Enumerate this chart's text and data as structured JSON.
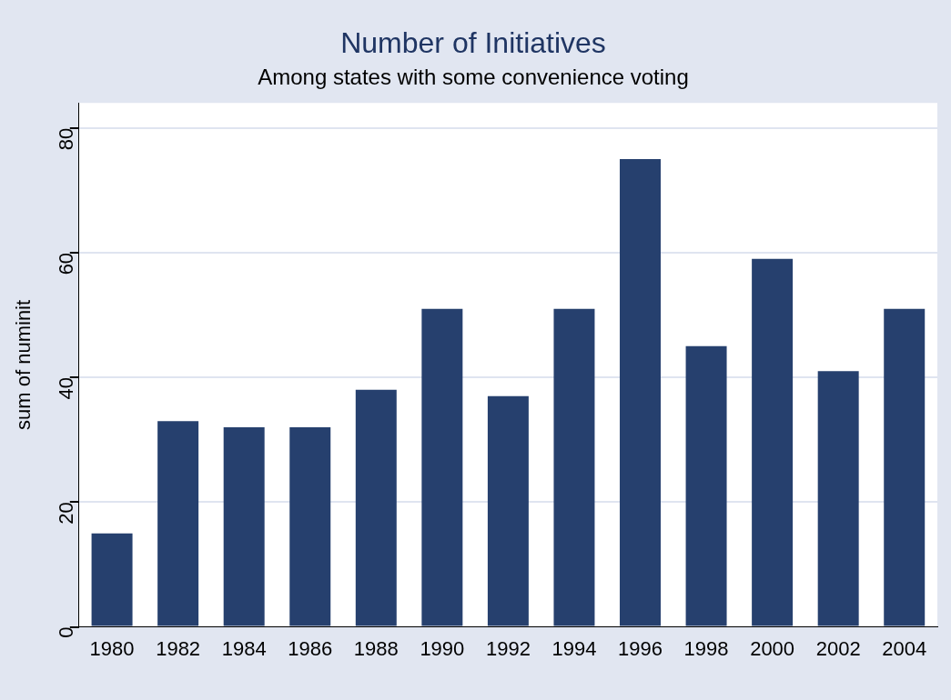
{
  "chart_data": {
    "type": "bar",
    "title": "Number of Initiatives",
    "subtitle": "Among states with some convenience voting",
    "ylabel": "sum of numinit",
    "categories": [
      "1980",
      "1982",
      "1984",
      "1986",
      "1988",
      "1990",
      "1992",
      "1994",
      "1996",
      "1998",
      "2000",
      "2002",
      "2004"
    ],
    "values": [
      15,
      33,
      32,
      32,
      38,
      51,
      37,
      51,
      75,
      45,
      59,
      41,
      51
    ],
    "color": "#26406e",
    "ylim": [
      0,
      84
    ],
    "yticks": [
      0,
      20,
      40,
      60,
      80
    ],
    "grid": "y",
    "legend": false
  }
}
